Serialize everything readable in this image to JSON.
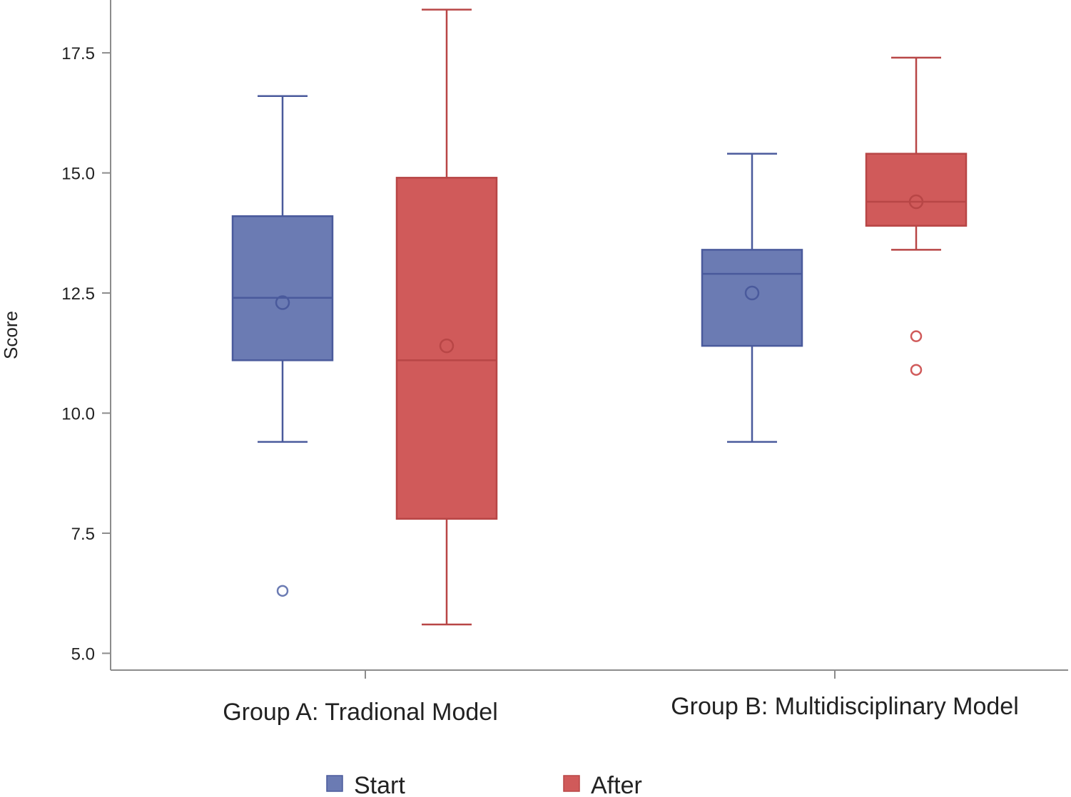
{
  "chart_data": {
    "type": "box",
    "ylabel": "Score",
    "xlabel": "",
    "ylim": [
      4.65,
      18.6
    ],
    "yticks": [
      "5.0",
      "7.5",
      "10.0",
      "12.5",
      "15.0",
      "17.5"
    ],
    "ytick_values": [
      5.0,
      7.5,
      10.0,
      12.5,
      15.0,
      17.5
    ],
    "categories": [
      "Group A: Tradional Model",
      "Group B: Multidisciplinary Model"
    ],
    "grid": false,
    "legend_position": "bottom",
    "series": [
      {
        "name": "Start",
        "color": "#6b7bb3",
        "edge_color": "#4a5a9c",
        "boxes": [
          {
            "category": "Group A: Tradional Model",
            "whisker_low": 9.4,
            "q1": 11.1,
            "median": 12.4,
            "q3": 14.1,
            "whisker_high": 16.6,
            "mean": 12.3,
            "outliers": [
              6.3
            ]
          },
          {
            "category": "Group B: Multidisciplinary Model",
            "whisker_low": 9.4,
            "q1": 11.4,
            "median": 12.9,
            "q3": 13.4,
            "whisker_high": 15.4,
            "mean": 12.5,
            "outliers": []
          }
        ]
      },
      {
        "name": "After",
        "color": "#d05a5a",
        "edge_color": "#b84646",
        "boxes": [
          {
            "category": "Group A: Tradional Model",
            "whisker_low": 5.6,
            "q1": 7.8,
            "median": 11.1,
            "q3": 14.9,
            "whisker_high": 18.4,
            "mean": 11.4,
            "outliers": []
          },
          {
            "category": "Group B: Multidisciplinary Model",
            "whisker_low": 13.4,
            "q1": 13.9,
            "median": 14.4,
            "q3": 15.4,
            "whisker_high": 17.4,
            "mean": 14.4,
            "outliers": [
              11.6,
              10.9
            ]
          }
        ]
      }
    ]
  }
}
